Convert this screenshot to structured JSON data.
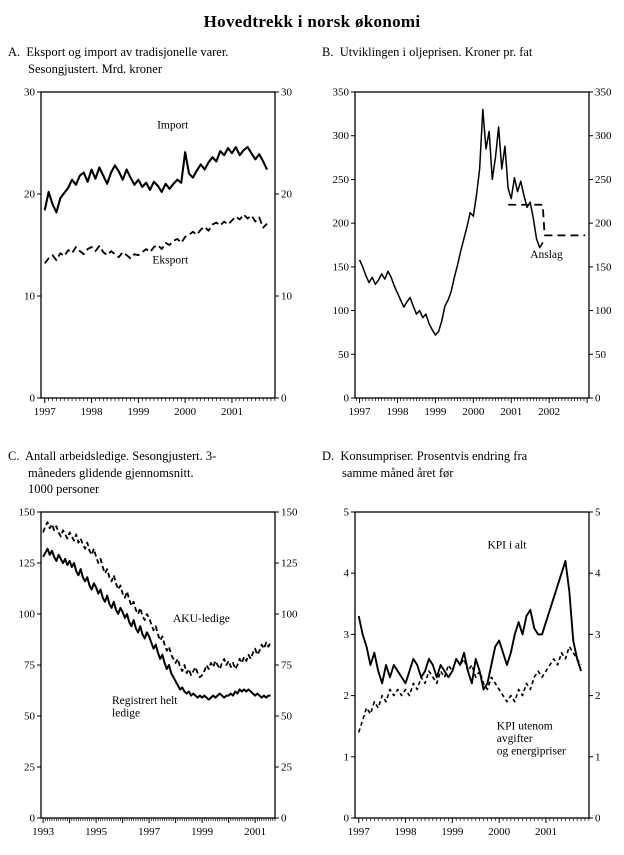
{
  "title": "Hovedtrekk i norsk økonomi",
  "chart_data": [
    {
      "id": "A",
      "type": "line",
      "caption": "A.  Eksport og import av tradisjonelle varer.\nSesongjustert. Mrd. kroner",
      "xlim": [
        1996.92,
        2001.92
      ],
      "ylim": [
        0,
        30
      ],
      "yticks": [
        0,
        10,
        20,
        30
      ],
      "xlabels": [
        {
          "x": 1997,
          "text": "1997"
        },
        {
          "x": 1998,
          "text": "1998"
        },
        {
          "x": 1999,
          "text": "1999"
        },
        {
          "x": 2000,
          "text": "2000"
        },
        {
          "x": 2001,
          "text": "2001"
        }
      ],
      "series": [
        {
          "name": "Import",
          "style": "solid",
          "width": 2.1,
          "x_start": 1997.0,
          "x_step": 0.0833333,
          "values": [
            18.4,
            20.2,
            19.0,
            18.2,
            19.6,
            20.1,
            20.6,
            21.4,
            20.9,
            21.8,
            22.1,
            21.2,
            22.4,
            21.5,
            22.6,
            21.8,
            21.0,
            22.1,
            22.8,
            22.2,
            21.4,
            22.4,
            21.6,
            20.9,
            21.4,
            20.7,
            21.1,
            20.4,
            21.2,
            20.8,
            20.2,
            21.0,
            20.5,
            21.0,
            21.4,
            21.1,
            24.1,
            22.0,
            21.6,
            22.3,
            22.9,
            22.4,
            23.1,
            23.6,
            23.2,
            24.2,
            23.8,
            24.5,
            24.0,
            24.6,
            23.8,
            24.3,
            24.6,
            24.0,
            23.4,
            23.9,
            23.2,
            22.4
          ]
        },
        {
          "name": "Eksport",
          "style": "dashed",
          "dash": "7,4",
          "width": 1.8,
          "x_start": 1997.0,
          "x_step": 0.0833333,
          "values": [
            13.2,
            13.7,
            14.0,
            13.5,
            14.2,
            13.9,
            14.5,
            14.2,
            14.8,
            14.4,
            14.1,
            14.6,
            14.8,
            14.4,
            14.9,
            14.3,
            14.0,
            14.4,
            14.1,
            13.8,
            14.3,
            14.0,
            13.7,
            14.1,
            14.0,
            14.3,
            14.6,
            14.3,
            14.8,
            15.0,
            14.6,
            15.2,
            15.0,
            15.4,
            15.6,
            15.2,
            15.8,
            16.0,
            16.3,
            16.0,
            16.5,
            16.8,
            16.4,
            17.0,
            17.2,
            16.9,
            17.3,
            17.0,
            17.4,
            17.8,
            17.5,
            18.0,
            17.6,
            17.9,
            17.3,
            17.7,
            16.7,
            17.1
          ]
        }
      ],
      "annotations": [
        {
          "x": 1999.4,
          "y": 26.4,
          "text": "Import"
        },
        {
          "x": 1999.3,
          "y": 13.2,
          "text": "Eksport"
        }
      ]
    },
    {
      "id": "B",
      "type": "line",
      "caption": "B.  Utviklingen i oljeprisen. Kroner pr. fat",
      "xlim": [
        1996.88,
        2003.05
      ],
      "ylim": [
        0,
        350
      ],
      "yticks": [
        0,
        50,
        100,
        150,
        200,
        250,
        300,
        350
      ],
      "xlabels": [
        {
          "x": 1997,
          "text": "1997"
        },
        {
          "x": 1998,
          "text": "1998"
        },
        {
          "x": 1999,
          "text": "1999"
        },
        {
          "x": 2000,
          "text": "2000"
        },
        {
          "x": 2001,
          "text": "2001"
        },
        {
          "x": 2002,
          "text": "2002"
        }
      ],
      "series": [
        {
          "name": "Oljepris",
          "style": "solid",
          "width": 1.5,
          "x_start": 1997.0,
          "x_step": 0.0833333,
          "values": [
            158,
            150,
            140,
            132,
            138,
            130,
            135,
            142,
            136,
            145,
            138,
            128,
            120,
            112,
            104,
            110,
            115,
            105,
            96,
            100,
            92,
            96,
            85,
            78,
            72,
            76,
            88,
            105,
            112,
            122,
            138,
            152,
            168,
            182,
            196,
            212,
            208,
            232,
            262,
            330,
            285,
            305,
            250,
            275,
            310,
            262,
            288,
            240,
            228,
            252,
            236,
            248,
            232,
            218,
            224,
            205,
            182,
            172,
            178
          ]
        },
        {
          "name": "Anslag",
          "style": "dashed",
          "dash": "8,5",
          "width": 1.8,
          "x": [
            2000.92,
            2001.83,
            2001.88,
            2002.95
          ],
          "y": [
            221,
            221,
            186,
            186
          ]
        }
      ],
      "annotations": [
        {
          "x": 2001.5,
          "y": 160,
          "text": "Anslag"
        }
      ]
    },
    {
      "id": "C",
      "type": "line",
      "caption": "C.  Antall arbeidsledige. Sesongjustert. 3-\nmåneders glidende gjennomsnitt.\n1000 personer",
      "xlim": [
        1992.92,
        2001.75
      ],
      "ylim": [
        0,
        150
      ],
      "yticks": [
        0,
        25,
        50,
        75,
        100,
        125,
        150
      ],
      "xlabels": [
        {
          "x": 1993,
          "text": "1993"
        },
        {
          "x": 1995,
          "text": "1995"
        },
        {
          "x": 1997,
          "text": "1997"
        },
        {
          "x": 1999,
          "text": "1999"
        },
        {
          "x": 2001,
          "text": "2001"
        }
      ],
      "series": [
        {
          "name": "AKU-ledige",
          "style": "dashed",
          "dash": "5,3",
          "width": 1.8,
          "x_start": 1993.0,
          "x_step": 0.0833333,
          "values": [
            140,
            143,
            145,
            142,
            144,
            141,
            143,
            140,
            138,
            141,
            139,
            137,
            140,
            138,
            136,
            139,
            135,
            137,
            134,
            132,
            135,
            131,
            129,
            132,
            128,
            125,
            127,
            123,
            120,
            122,
            118,
            116,
            119,
            115,
            112,
            114,
            110,
            108,
            111,
            107,
            104,
            106,
            102,
            100,
            103,
            99,
            97,
            100,
            98,
            95,
            92,
            94,
            90,
            87,
            89,
            85,
            82,
            84,
            80,
            78,
            76,
            78,
            74,
            72,
            75,
            71,
            73,
            70,
            72,
            74,
            71,
            69,
            70,
            72,
            75,
            73,
            76,
            74,
            77,
            75,
            73,
            76,
            78,
            75,
            77,
            74,
            76,
            73,
            75,
            78,
            76,
            79,
            77,
            80,
            78,
            81,
            83,
            80,
            82,
            85,
            83,
            86,
            84,
            86
          ]
        },
        {
          "name": "Registrert helt ledige",
          "style": "solid",
          "width": 2.0,
          "x_start": 1993.0,
          "x_step": 0.0833333,
          "values": [
            128,
            130,
            132,
            129,
            131,
            128,
            126,
            129,
            127,
            125,
            127,
            124,
            126,
            123,
            125,
            121,
            119,
            122,
            118,
            116,
            118,
            114,
            112,
            115,
            113,
            110,
            112,
            108,
            106,
            109,
            105,
            103,
            106,
            102,
            100,
            103,
            101,
            98,
            100,
            96,
            94,
            97,
            93,
            91,
            94,
            90,
            88,
            91,
            89,
            86,
            83,
            85,
            81,
            78,
            80,
            76,
            73,
            75,
            71,
            69,
            67,
            65,
            63,
            64,
            62,
            61,
            62,
            60,
            61,
            60,
            59,
            60,
            59,
            60,
            59,
            58,
            59,
            60,
            59,
            60,
            61,
            60,
            59,
            60,
            60,
            61,
            60,
            62,
            61,
            63,
            62,
            63,
            62,
            63,
            62,
            61,
            60,
            61,
            60,
            59,
            60,
            59,
            60,
            60
          ]
        }
      ],
      "annotations": [
        {
          "x": 1997.9,
          "y": 96,
          "text": "AKU-ledige"
        },
        {
          "x": 1995.6,
          "y": 56,
          "text": "Registrert helt\nledige"
        }
      ]
    },
    {
      "id": "D",
      "type": "line",
      "caption": "D.  Konsumpriser. Prosentvis endring fra\nsamme måned året før",
      "xlim": [
        1996.92,
        2001.92
      ],
      "ylim": [
        0,
        5
      ],
      "yticks": [
        0,
        1,
        2,
        3,
        4,
        5
      ],
      "xlabels": [
        {
          "x": 1997,
          "text": "1997"
        },
        {
          "x": 1998,
          "text": "1998"
        },
        {
          "x": 1999,
          "text": "1999"
        },
        {
          "x": 2000,
          "text": "2000"
        },
        {
          "x": 2001,
          "text": "2001"
        }
      ],
      "series": [
        {
          "name": "KPI i alt",
          "style": "solid",
          "width": 1.9,
          "x_start": 1997.0,
          "x_step": 0.0833333,
          "values": [
            3.3,
            3.0,
            2.8,
            2.5,
            2.7,
            2.4,
            2.2,
            2.5,
            2.3,
            2.5,
            2.4,
            2.3,
            2.2,
            2.4,
            2.6,
            2.5,
            2.3,
            2.4,
            2.6,
            2.5,
            2.3,
            2.5,
            2.4,
            2.3,
            2.4,
            2.6,
            2.5,
            2.7,
            2.4,
            2.2,
            2.6,
            2.4,
            2.1,
            2.2,
            2.5,
            2.8,
            2.9,
            2.7,
            2.5,
            2.7,
            3.0,
            3.2,
            3.0,
            3.3,
            3.4,
            3.1,
            3.0,
            3.0,
            3.2,
            3.4,
            3.6,
            3.8,
            4.0,
            4.2,
            3.7,
            2.9,
            2.6,
            2.4
          ]
        },
        {
          "name": "KPI utenom avgifter og energipriser",
          "style": "dashed",
          "dash": "4,3",
          "width": 1.6,
          "x_start": 1997.0,
          "x_step": 0.0833333,
          "values": [
            1.4,
            1.6,
            1.8,
            1.7,
            1.9,
            1.8,
            2.0,
            1.9,
            2.1,
            2.0,
            2.1,
            2.0,
            2.1,
            2.0,
            2.2,
            2.1,
            2.3,
            2.2,
            2.4,
            2.3,
            2.2,
            2.4,
            2.3,
            2.5,
            2.4,
            2.6,
            2.5,
            2.6,
            2.4,
            2.5,
            2.3,
            2.4,
            2.2,
            2.1,
            2.3,
            2.2,
            2.1,
            2.0,
            1.9,
            2.0,
            1.9,
            2.1,
            2.0,
            2.2,
            2.1,
            2.3,
            2.4,
            2.3,
            2.4,
            2.5,
            2.6,
            2.5,
            2.7,
            2.6,
            2.8,
            2.7,
            2.6,
            2.5
          ]
        }
      ],
      "annotations": [
        {
          "x": 1999.75,
          "y": 4.4,
          "text": "KPI i alt"
        },
        {
          "x": 1999.95,
          "y": 1.45,
          "text": "KPI utenom\navgifter\nog energipriser"
        }
      ]
    }
  ]
}
